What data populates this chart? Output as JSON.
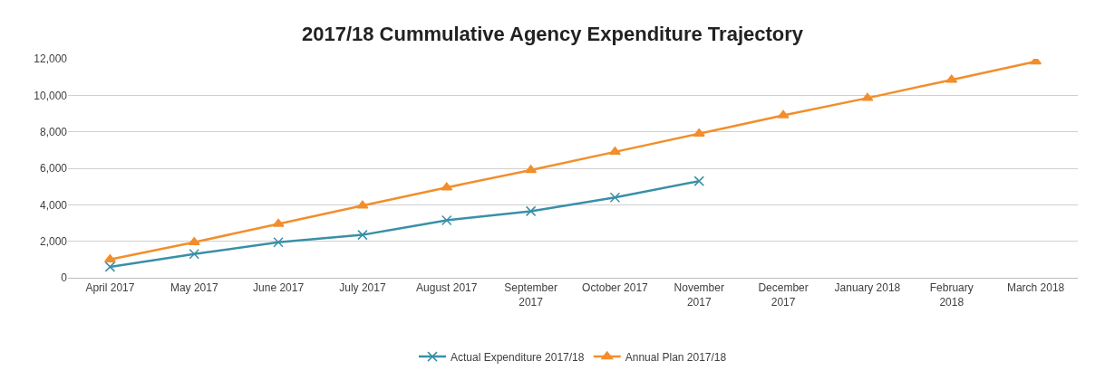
{
  "chart_data": {
    "type": "line",
    "title": "2017/18 Cummulative Agency Expenditure Trajectory",
    "categories": [
      "April 2017",
      "May 2017",
      "June 2017",
      "July 2017",
      "August 2017",
      "September 2017",
      "October 2017",
      "November 2017",
      "December 2017",
      "January 2018",
      "February 2018",
      "March 2018"
    ],
    "series": [
      {
        "name": "Actual Expenditure 2017/18",
        "color": "#3a8fa8",
        "marker": "cross",
        "values": [
          600,
          1300,
          1950,
          2350,
          3150,
          3650,
          4400,
          5300,
          null,
          null,
          null,
          null
        ]
      },
      {
        "name": "Annual Plan 2017/18",
        "color": "#f28e2b",
        "marker": "triangle",
        "values": [
          1000,
          1950,
          2950,
          3950,
          4950,
          5900,
          6900,
          7900,
          8900,
          9850,
          10850,
          11850
        ]
      }
    ],
    "ylim": [
      0,
      12000
    ],
    "yticks": [
      {
        "value": 0,
        "label": "0"
      },
      {
        "value": 2000,
        "label": "2,000"
      },
      {
        "value": 4000,
        "label": "4,000"
      },
      {
        "value": 6000,
        "label": "6,000"
      },
      {
        "value": 8000,
        "label": "8,000"
      },
      {
        "value": 10000,
        "label": "10,000"
      },
      {
        "value": 12000,
        "label": "12,000"
      }
    ],
    "grid": "y",
    "legend": "bottom",
    "line_style": "solid"
  }
}
